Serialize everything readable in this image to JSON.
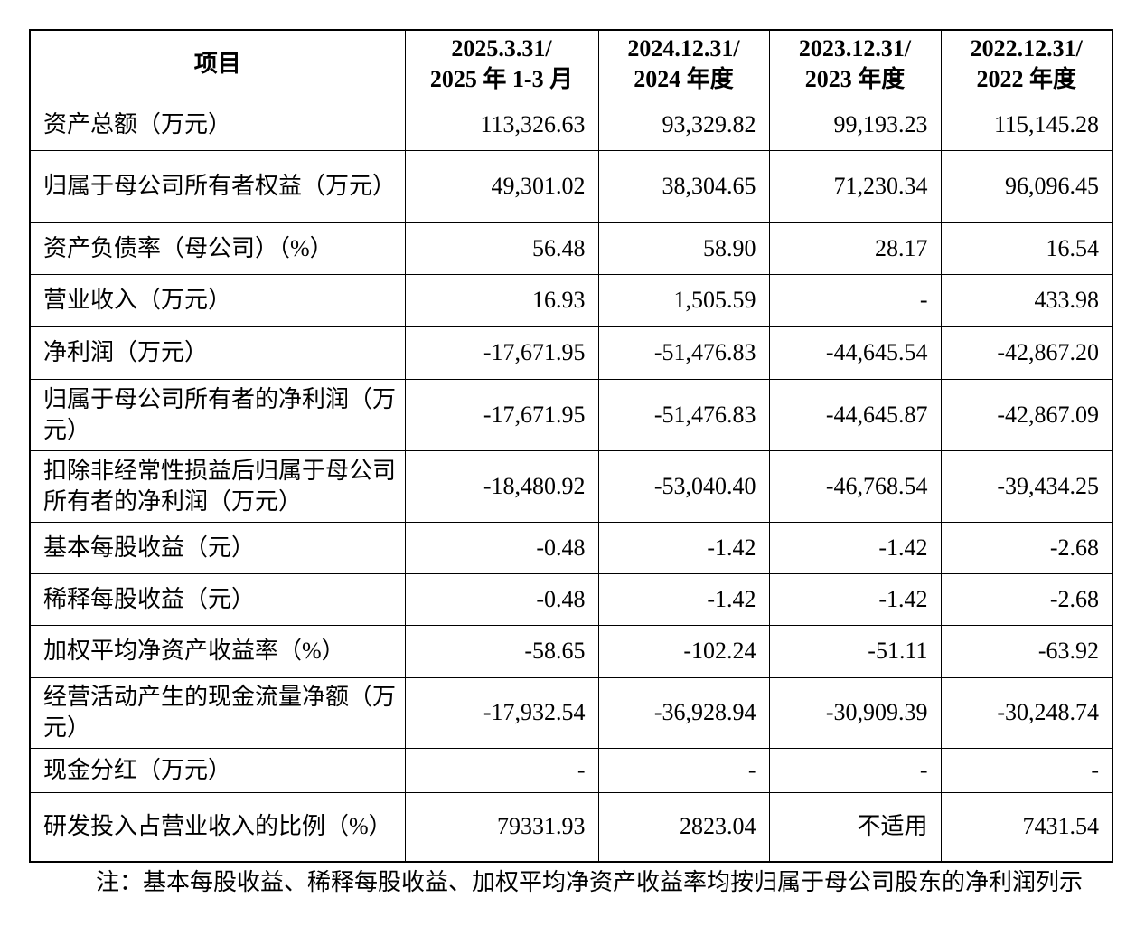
{
  "table": {
    "header": [
      [
        "项目"
      ],
      [
        "2025.3.31/",
        "2025 年 1-3 月"
      ],
      [
        "2024.12.31/",
        "2024 年度"
      ],
      [
        "2023.12.31/",
        "2023 年度"
      ],
      [
        "2022.12.31/",
        "2022 年度"
      ]
    ],
    "rows": [
      [
        "资产总额（万元）",
        "113,326.63",
        "93,329.82",
        "99,193.23",
        "115,145.28"
      ],
      [
        "归属于母公司所有者权益（万元）",
        "49,301.02",
        "38,304.65",
        "71,230.34",
        "96,096.45"
      ],
      [
        "资产负债率（母公司）（%）",
        "56.48",
        "58.90",
        "28.17",
        "16.54"
      ],
      [
        "营业收入（万元）",
        "16.93",
        "1,505.59",
        "-",
        "433.98"
      ],
      [
        "净利润（万元）",
        "-17,671.95",
        "-51,476.83",
        "-44,645.54",
        "-42,867.20"
      ],
      [
        "归属于母公司所有者的净利润（万元）",
        "-17,671.95",
        "-51,476.83",
        "-44,645.87",
        "-42,867.09"
      ],
      [
        "扣除非经常性损益后归属于母公司所有者的净利润（万元）",
        "-18,480.92",
        "-53,040.40",
        "-46,768.54",
        "-39,434.25"
      ],
      [
        "基本每股收益（元）",
        "-0.48",
        "-1.42",
        "-1.42",
        "-2.68"
      ],
      [
        "稀释每股收益（元）",
        "-0.48",
        "-1.42",
        "-1.42",
        "-2.68"
      ],
      [
        "加权平均净资产收益率（%）",
        "-58.65",
        "-102.24",
        "-51.11",
        "-63.92"
      ],
      [
        "经营活动产生的现金流量净额（万元）",
        "-17,932.54",
        "-36,928.94",
        "-30,909.39",
        "-30,248.74"
      ],
      [
        "现金分红（万元）",
        "-",
        "-",
        "-",
        "-"
      ],
      [
        "研发投入占营业收入的比例（%）",
        "79331.93",
        "2823.04",
        "不适用",
        "7431.54"
      ]
    ]
  },
  "note": "注：基本每股收益、稀释每股收益、加权平均净资产收益率均按归属于母公司股东的净利润列示"
}
